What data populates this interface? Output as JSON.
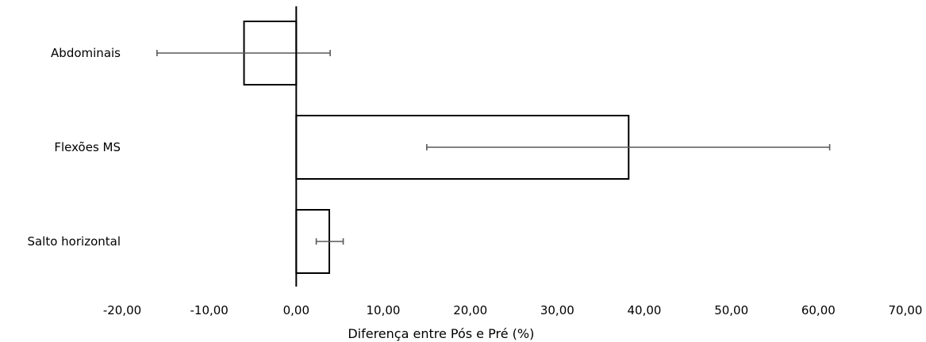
{
  "chart_data": {
    "type": "bar",
    "orientation": "horizontal",
    "categories": [
      "Abdominais",
      "Flexões MS",
      "Salto horizontal"
    ],
    "values": [
      -6.0,
      38.2,
      3.8
    ],
    "error_low": [
      -16.0,
      15.0,
      2.3
    ],
    "error_high": [
      3.9,
      61.3,
      5.4
    ],
    "xlim": [
      -20,
      70
    ],
    "xticks": [
      -20,
      -10,
      0,
      10,
      20,
      30,
      40,
      50,
      60,
      70
    ],
    "xtick_labels": [
      "-20,00",
      "-10,00",
      "0,00",
      "10,00",
      "20,00",
      "30,00",
      "40,00",
      "50,00",
      "60,00",
      "70,00"
    ],
    "xlabel": "Diferença entre Pós e Pré (%)",
    "ylabel": "",
    "title": "",
    "grid": false,
    "bar_fill": "#ffffff",
    "bar_stroke": "#000000",
    "errorbar_color": "#595959"
  }
}
